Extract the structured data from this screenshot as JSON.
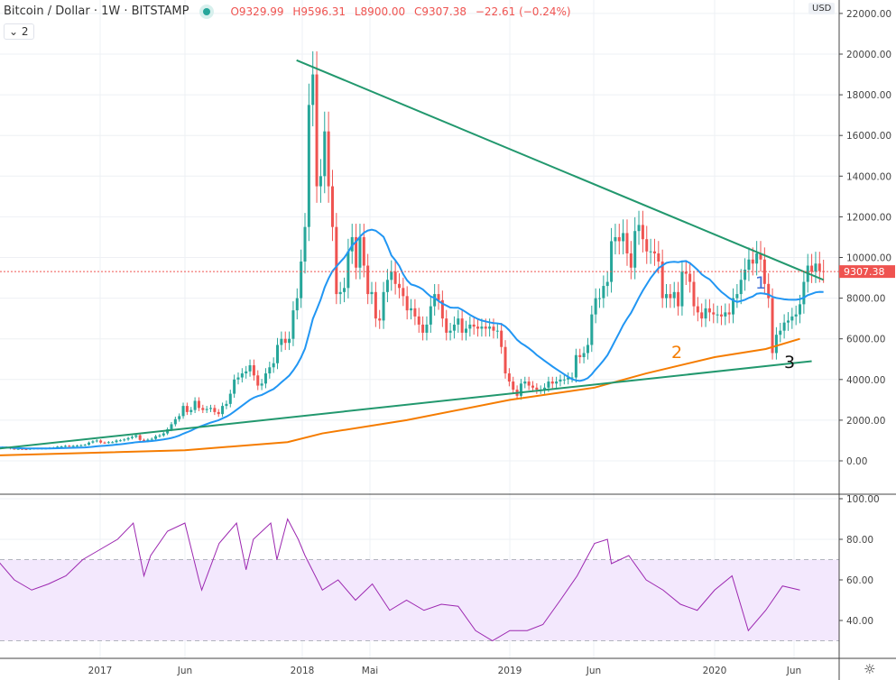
{
  "header": {
    "symbol": "Bitcoin / Dollar · 1W · BITSTAMP",
    "open": "O9329.99",
    "high": "H9596.31",
    "low": "L8900.00",
    "close": "C9307.38",
    "change": "−22.61 (−0.24%)",
    "legend_toggle": "⌄ 2",
    "currency": "USD"
  },
  "colors": {
    "up": "#26a69a",
    "down": "#ef5350",
    "ma_short": "#2196f3",
    "ma_long": "#f57c00",
    "trendline": "#22986e",
    "rsi": "#9c27b0",
    "rsi_band": "#f3e8fd"
  },
  "annotations": [
    {
      "text": "1",
      "color": "#3f6fd8"
    },
    {
      "text": "2",
      "color": "#f57c00"
    },
    {
      "text": "3",
      "color": "#111111"
    }
  ],
  "chart_data": [
    {
      "type": "candlestick",
      "title": "",
      "start_week": "2016-07-04",
      "interval": "1W",
      "closes": [
        650,
        670,
        660,
        600,
        580,
        590,
        575,
        570,
        600,
        610,
        605,
        610,
        610,
        640,
        650,
        700,
        710,
        740,
        730,
        740,
        750,
        770,
        790,
        900,
        960,
        1000,
        900,
        890,
        920,
        920,
        1000,
        1010,
        1050,
        1120,
        1180,
        1260,
        1030,
        970,
        1040,
        1080,
        1210,
        1250,
        1350,
        1550,
        1800,
        2050,
        2200,
        2700,
        2400,
        2500,
        2950,
        2600,
        2500,
        2550,
        2600,
        2400,
        2300,
        2700,
        2800,
        3300,
        4000,
        4100,
        4300,
        4400,
        4700,
        4200,
        3700,
        3800,
        4300,
        4600,
        4800,
        5700,
        6000,
        5800,
        6000,
        7400,
        8000,
        9800,
        11500,
        17500,
        19000,
        13500,
        14000,
        16200,
        13500,
        11500,
        8200,
        8300,
        8500,
        10300,
        11000,
        9500,
        11000,
        9600,
        8200,
        8300,
        7000,
        6900,
        8300,
        8900,
        9300,
        8700,
        8500,
        8100,
        7400,
        7500,
        7100,
        6700,
        6300,
        6700,
        7600,
        8200,
        7900,
        7000,
        6300,
        6400,
        6700,
        7000,
        6300,
        6500,
        6700,
        6600,
        6500,
        6600,
        6500,
        6600,
        6400,
        6400,
        5600,
        4300,
        3900,
        3500,
        3200,
        3800,
        3900,
        3700,
        3600,
        3500,
        3500,
        3600,
        3900,
        3800,
        3900,
        4000,
        4000,
        4100,
        4100,
        5200,
        5100,
        5300,
        5700,
        7200,
        8000,
        8000,
        8600,
        8800,
        10800,
        11000,
        10800,
        11200,
        10200,
        9500,
        11300,
        11600,
        10900,
        10300,
        10300,
        10200,
        9800,
        8000,
        8200,
        8000,
        8300,
        7600,
        9300,
        9200,
        8800,
        7600,
        7300,
        7000,
        7500,
        7300,
        7200,
        7200,
        7100,
        7300,
        7200,
        8000,
        8200,
        8900,
        9400,
        9900,
        9700,
        10200,
        9900,
        8700,
        8000,
        5300,
        6200,
        6400,
        6800,
        6900,
        7100,
        7200,
        7700,
        8800,
        9600,
        9300,
        9700,
        9329.99,
        9307.38
      ],
      "ma_long": [
        [
          "2016-07",
          270
        ],
        [
          "2017-06",
          520
        ],
        [
          "2017-12",
          920
        ],
        [
          "2018-02",
          1350
        ],
        [
          "2018-07",
          2000
        ],
        [
          "2019-01",
          3000
        ],
        [
          "2019-06",
          3600
        ],
        [
          "2019-09",
          4300
        ],
        [
          "2020-01",
          5100
        ],
        [
          "2020-04",
          5500
        ],
        [
          "2020-06",
          6000
        ]
      ],
      "trendlines": [
        {
          "from": [
            "2017-12-17",
            19700
          ],
          "to": [
            "2020-07-13",
            8900
          ]
        },
        {
          "from": [
            "2016-07-04",
            600
          ],
          "to": [
            "2020-06-22",
            4900
          ]
        }
      ],
      "last_price": "9307.38",
      "y_ticks": [
        "22000.00",
        "20000.00",
        "18000.00",
        "16000.00",
        "14000.00",
        "12000.00",
        "10000.00",
        "8000.00",
        "6000.00",
        "4000.00",
        "2000.00",
        "0.00"
      ],
      "ylim": [
        0,
        22000
      ]
    },
    {
      "type": "line",
      "title": "",
      "points": [
        [
          "2016-07",
          70
        ],
        [
          "2016-08",
          60
        ],
        [
          "2016-09",
          55
        ],
        [
          "2016-10",
          58
        ],
        [
          "2016-11",
          62
        ],
        [
          "2016-12",
          70
        ],
        [
          "2017-01",
          75
        ],
        [
          "2017-02",
          80
        ],
        [
          "2017-03",
          88
        ],
        [
          "2017-03-20",
          62
        ],
        [
          "2017-04",
          72
        ],
        [
          "2017-05",
          84
        ],
        [
          "2017-06",
          88
        ],
        [
          "2017-06-26",
          60
        ],
        [
          "2017-07",
          55
        ],
        [
          "2017-08",
          78
        ],
        [
          "2017-09",
          88
        ],
        [
          "2017-09-18",
          65
        ],
        [
          "2017-10",
          80
        ],
        [
          "2017-11",
          88
        ],
        [
          "2017-11-12",
          70
        ],
        [
          "2017-12",
          90
        ],
        [
          "2017-12-20",
          80
        ],
        [
          "2018-01",
          72
        ],
        [
          "2018-02",
          55
        ],
        [
          "2018-03",
          60
        ],
        [
          "2018-04",
          50
        ],
        [
          "2018-05",
          58
        ],
        [
          "2018-06",
          45
        ],
        [
          "2018-07",
          50
        ],
        [
          "2018-08",
          45
        ],
        [
          "2018-09",
          48
        ],
        [
          "2018-10",
          47
        ],
        [
          "2018-11",
          35
        ],
        [
          "2018-12",
          30
        ],
        [
          "2019-01",
          35
        ],
        [
          "2019-02",
          35
        ],
        [
          "2019-03",
          38
        ],
        [
          "2019-04",
          50
        ],
        [
          "2019-05",
          62
        ],
        [
          "2019-06",
          78
        ],
        [
          "2019-06-24",
          80
        ],
        [
          "2019-07",
          68
        ],
        [
          "2019-08",
          72
        ],
        [
          "2019-09",
          60
        ],
        [
          "2019-10",
          55
        ],
        [
          "2019-11",
          48
        ],
        [
          "2019-12",
          45
        ],
        [
          "2020-01",
          55
        ],
        [
          "2020-02",
          62
        ],
        [
          "2020-03",
          35
        ],
        [
          "2020-04",
          45
        ],
        [
          "2020-05",
          57
        ],
        [
          "2020-06",
          55
        ]
      ],
      "y_ticks": [
        "100.00",
        "80.00",
        "60.00",
        "40.00"
      ],
      "band": [
        30,
        70
      ],
      "ylim": [
        25,
        100
      ]
    }
  ],
  "x_ticks": [
    "2017",
    "Jun",
    "2018",
    "Mai",
    "2019",
    "Jun",
    "2020",
    "Jun"
  ]
}
